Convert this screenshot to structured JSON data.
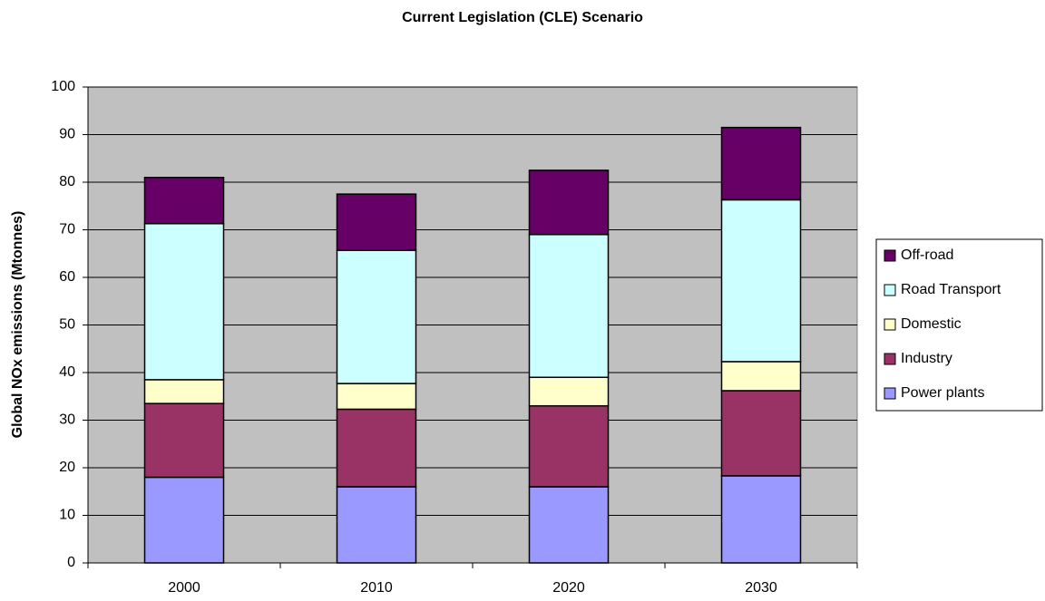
{
  "chart_data": {
    "type": "stacked_bar",
    "title": "Current Legislation (CLE) Scenario",
    "y_label": "Global NOx emissions (Mtonnes)",
    "categories": [
      "2000",
      "2010",
      "2020",
      "2030"
    ],
    "series": [
      {
        "name": "Power plants",
        "color": "#9999ff",
        "values": [
          18,
          16,
          16,
          18.3
        ]
      },
      {
        "name": "Industry",
        "color": "#993366",
        "values": [
          15.5,
          16.3,
          17,
          17.9
        ]
      },
      {
        "name": "Domestic",
        "color": "#ffffcc",
        "values": [
          5,
          5.4,
          6,
          6.1
        ]
      },
      {
        "name": "Road Transport",
        "color": "#ccffff",
        "values": [
          32.8,
          28,
          30,
          34
        ]
      },
      {
        "name": "Off-road",
        "color": "#660066",
        "values": [
          9.7,
          11.8,
          13.5,
          15.2
        ]
      }
    ],
    "ylim": [
      0,
      100
    ],
    "yticks": [
      0,
      10,
      20,
      30,
      40,
      50,
      60,
      70,
      80,
      90,
      100
    ],
    "grid": true,
    "plot_background": "#c0c0c0",
    "legend": "right"
  }
}
